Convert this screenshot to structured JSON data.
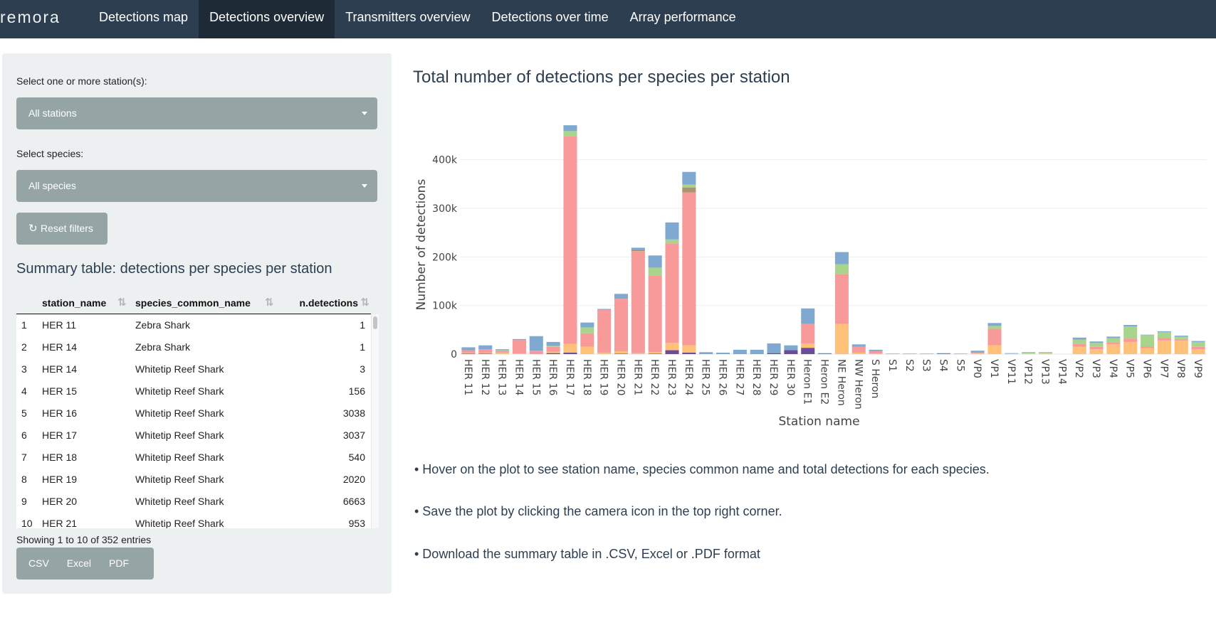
{
  "brand": "remora",
  "nav": {
    "tabs": [
      "Detections map",
      "Detections overview",
      "Transmitters overview",
      "Detections over time",
      "Array performance"
    ],
    "active": "Detections overview"
  },
  "sidebar": {
    "station_label": "Select one or more station(s):",
    "station_value": "All stations",
    "species_label": "Select species:",
    "species_value": "All species",
    "reset_label": "Reset filters",
    "summary_title": "Summary table: detections per species per station",
    "table": {
      "headers": [
        "station_name",
        "species_common_name",
        "n.detections"
      ],
      "rows": [
        [
          "1",
          "HER 11",
          "Zebra Shark",
          "1"
        ],
        [
          "2",
          "HER 14",
          "Zebra Shark",
          "1"
        ],
        [
          "3",
          "HER 14",
          "Whitetip Reef Shark",
          "3"
        ],
        [
          "4",
          "HER 15",
          "Whitetip Reef Shark",
          "156"
        ],
        [
          "5",
          "HER 16",
          "Whitetip Reef Shark",
          "3038"
        ],
        [
          "6",
          "HER 17",
          "Whitetip Reef Shark",
          "3037"
        ],
        [
          "7",
          "HER 18",
          "Whitetip Reef Shark",
          "540"
        ],
        [
          "8",
          "HER 19",
          "Whitetip Reef Shark",
          "2020"
        ],
        [
          "9",
          "HER 20",
          "Whitetip Reef Shark",
          "6663"
        ],
        [
          "10",
          "HER 21",
          "Whitetip Reef Shark",
          "953"
        ]
      ]
    },
    "showing": "Showing 1 to 10 of 352 entries",
    "export_buttons": [
      "CSV",
      "Excel",
      "PDF"
    ]
  },
  "main": {
    "chart_title": "Total number of detections per species per station",
    "bullets": [
      "• Hover on the plot to see station name, species common name and total detections for each species.",
      "• Save the plot by clicking the camera icon in the top right corner.",
      "• Download the summary table in .CSV, Excel or .PDF format"
    ]
  },
  "colors": {
    "navbar": "#2c3e50",
    "sidebar": "#ecf0f1",
    "control": "#95a5a6",
    "palette": [
      "#f89a9a",
      "#7fa9d1",
      "#a8d58b",
      "#ffc07a",
      "#6b4c9a",
      "#a89670",
      "#d98c8c"
    ]
  },
  "chart_data": {
    "type": "bar",
    "stacked": true,
    "xlabel": "Station name",
    "ylabel": "Number of detections",
    "ylim": [
      0,
      480000
    ],
    "yticks": [
      0,
      100000,
      200000,
      300000,
      400000
    ],
    "ytick_labels": [
      "0",
      "100k",
      "200k",
      "300k",
      "400k"
    ],
    "grid": true,
    "categories": [
      "HER 11",
      "HER 12",
      "HER 13",
      "HER 14",
      "HER 15",
      "HER 16",
      "HER 17",
      "HER 18",
      "HER 19",
      "HER 20",
      "HER 21",
      "HER 22",
      "HER 23",
      "HER 24",
      "HER 25",
      "HER 26",
      "HER 27",
      "HER 28",
      "HER 29",
      "HER 30",
      "Heron E1",
      "Heron E2",
      "NE Heron",
      "NW Heron",
      "S Heron",
      "S1",
      "S2",
      "S3",
      "S4",
      "S5",
      "VP0",
      "VP1",
      "VP11",
      "VP12",
      "VP13",
      "VP14",
      "VP2",
      "VP3",
      "VP4",
      "VP5",
      "VP6",
      "VP7",
      "VP8",
      "VP9"
    ],
    "series": [
      {
        "color": "#6b4c9a",
        "values": [
          1000,
          1000,
          0,
          0,
          0,
          2000,
          3000,
          0,
          0,
          1000,
          0,
          1000,
          8000,
          3000,
          0,
          0,
          0,
          0,
          2000,
          8000,
          13000,
          1000,
          0,
          0,
          0,
          0,
          0,
          0,
          1000,
          0,
          0,
          0,
          0,
          0,
          0,
          0,
          0,
          0,
          0,
          0,
          0,
          0,
          0,
          0
        ]
      },
      {
        "color": "#ffc07a",
        "values": [
          1000,
          1000,
          3000,
          1000,
          0,
          3000,
          18000,
          15000,
          3000,
          5000,
          2000,
          3000,
          15000,
          15000,
          0,
          0,
          0,
          0,
          0,
          0,
          9000,
          0,
          62000,
          3000,
          1000,
          0,
          0,
          0,
          0,
          0,
          2000,
          18000,
          0,
          1000,
          2000,
          0,
          15000,
          10000,
          20000,
          25000,
          12000,
          28000,
          28000,
          10000
        ]
      },
      {
        "color": "#f89a9a",
        "values": [
          6000,
          8000,
          4000,
          28000,
          7000,
          10000,
          428000,
          28000,
          88000,
          108000,
          210000,
          158000,
          205000,
          315000,
          0,
          0,
          0,
          0,
          0,
          0,
          40000,
          0,
          103000,
          12000,
          5000,
          0,
          0,
          0,
          0,
          0,
          1000,
          34000,
          0,
          0,
          0,
          0,
          6000,
          5000,
          4000,
          7000,
          4000,
          5000,
          3000,
          5000
        ]
      },
      {
        "color": "#a89670",
        "values": [
          0,
          0,
          0,
          0,
          0,
          0,
          0,
          0,
          0,
          0,
          3000,
          0,
          0,
          10000,
          0,
          0,
          0,
          0,
          0,
          0,
          0,
          0,
          0,
          0,
          0,
          0,
          0,
          0,
          0,
          0,
          0,
          0,
          0,
          0,
          0,
          0,
          0,
          0,
          0,
          0,
          0,
          0,
          0,
          0
        ]
      },
      {
        "color": "#a8d58b",
        "values": [
          0,
          0,
          1000,
          0,
          0,
          2000,
          10000,
          12000,
          0,
          0,
          0,
          16000,
          8000,
          6000,
          0,
          0,
          0,
          0,
          0,
          0,
          0,
          0,
          20000,
          0,
          0,
          0,
          0,
          0,
          0,
          0,
          0,
          6000,
          1000,
          2000,
          1000,
          0,
          9000,
          8000,
          9000,
          25000,
          23000,
          12000,
          5000,
          10000
        ]
      },
      {
        "color": "#7fa9d1",
        "values": [
          6000,
          8000,
          2000,
          2000,
          30000,
          8000,
          12000,
          10000,
          2000,
          10000,
          4000,
          25000,
          35000,
          26000,
          4000,
          3000,
          9000,
          9000,
          20000,
          10000,
          32000,
          1000,
          25000,
          5000,
          3000,
          1000,
          1000,
          1000,
          1000,
          1000,
          4000,
          6000,
          1000,
          1000,
          1000,
          0,
          4000,
          3000,
          3000,
          3000,
          1000,
          2000,
          2000,
          2000
        ]
      }
    ]
  }
}
